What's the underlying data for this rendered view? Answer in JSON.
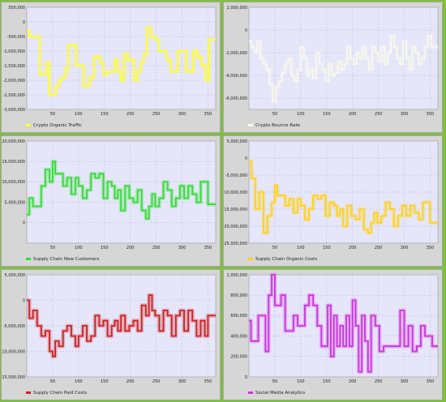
{
  "chart_data": [
    {
      "type": "line",
      "series": [
        {
          "name": "Crypto Organic Traffic",
          "color": "#ffff33"
        }
      ],
      "ylim": [
        -3000000,
        500000
      ],
      "yticks": [
        500000,
        0,
        -500000,
        -1000000,
        -1500000,
        -2000000,
        -2500000,
        -3000000
      ],
      "ytick_labels": [
        "500,000",
        "0",
        "-500,000",
        "-1,000,000",
        "-1,500,000",
        "-2,000,000",
        "-2,500,000",
        "-3,000,000"
      ],
      "xlim": [
        0,
        365
      ],
      "xticks": [
        50,
        100,
        150,
        200,
        250,
        300,
        350
      ],
      "xtick_labels": [
        "50",
        "100",
        "150",
        "200",
        "250",
        "300",
        "350"
      ],
      "x": [
        0,
        5,
        10,
        18,
        25,
        32,
        38,
        44,
        50,
        56,
        62,
        68,
        75,
        80,
        88,
        95,
        102,
        110,
        116,
        122,
        130,
        135,
        142,
        148,
        155,
        162,
        170,
        176,
        182,
        188,
        195,
        200,
        207,
        214,
        220,
        226,
        232,
        240,
        248,
        255,
        262,
        270,
        278,
        285,
        292,
        300,
        308,
        315,
        322,
        330,
        338,
        345,
        352,
        360
      ],
      "values": [
        -300000,
        -500000,
        -500000,
        -500000,
        -1800000,
        -1800000,
        -1400000,
        -2500000,
        -2500000,
        -2200000,
        -2000000,
        -1900000,
        -1600000,
        -800000,
        -800000,
        -1500000,
        -1500000,
        -2200000,
        -2200000,
        -1900000,
        -1200000,
        -1200000,
        -1400000,
        -1800000,
        -1700000,
        -1700000,
        -1300000,
        -1700000,
        -2000000,
        -1100000,
        -1300000,
        -1300000,
        -2000000,
        -1700000,
        -1400000,
        -1100000,
        -200000,
        -500000,
        -600000,
        -1000000,
        -1000000,
        -1300000,
        -1700000,
        -1700000,
        -1000000,
        -1000000,
        -1700000,
        -1700000,
        -1000000,
        -1200000,
        -1500000,
        -2000000,
        -600000,
        -600000
      ],
      "grid": true,
      "legend": "bottom-left"
    },
    {
      "type": "line",
      "series": [
        {
          "name": "Crypto Bounce Rate",
          "color": "#f8f8ec"
        }
      ],
      "ylim": [
        -7000000,
        2000000
      ],
      "yticks": [
        2000000,
        0,
        -2000000,
        -4000000,
        -6000000
      ],
      "ytick_labels": [
        "2,000,000",
        "0",
        "-2,000,000",
        "-4,000,000",
        "-6,000,000"
      ],
      "xlim": [
        0,
        365
      ],
      "xticks": [
        50,
        100,
        150,
        200,
        250,
        300,
        350
      ],
      "xtick_labels": [
        "50",
        "100",
        "150",
        "200",
        "250",
        "300",
        "350"
      ],
      "x": [
        0,
        5,
        10,
        16,
        22,
        28,
        34,
        40,
        46,
        52,
        58,
        64,
        70,
        76,
        82,
        88,
        94,
        100,
        106,
        112,
        118,
        124,
        130,
        136,
        142,
        148,
        154,
        160,
        166,
        172,
        178,
        184,
        190,
        196,
        202,
        208,
        214,
        220,
        226,
        232,
        238,
        244,
        250,
        256,
        262,
        268,
        274,
        280,
        286,
        292,
        298,
        304,
        310,
        316,
        322,
        328,
        334,
        340,
        346,
        352,
        360
      ],
      "values": [
        -1000000,
        -1500000,
        -2000000,
        -1000000,
        -2500000,
        -3000000,
        -3500000,
        -4800000,
        -6300000,
        -5000000,
        -4500000,
        -3800000,
        -3000000,
        -2500000,
        -4000000,
        -4500000,
        -3500000,
        -1500000,
        -2500000,
        -4000000,
        -3500000,
        -4200000,
        -2000000,
        -3000000,
        -3500000,
        -4500000,
        -3000000,
        -4000000,
        -3800000,
        -2800000,
        -3500000,
        -3000000,
        -1500000,
        -2500000,
        -3000000,
        -2000000,
        -2500000,
        -1500000,
        -2500000,
        -3500000,
        -1500000,
        -2000000,
        -2800000,
        -1500000,
        -3000000,
        -2000000,
        -500000,
        -1500000,
        -2500000,
        -3000000,
        -1000000,
        -2500000,
        -3500000,
        -1500000,
        -2000000,
        -3000000,
        -2500000,
        -1500000,
        -500000,
        -1500000,
        -1500000
      ],
      "grid": true,
      "legend": "bottom-left"
    },
    {
      "type": "line",
      "series": [
        {
          "name": "Supply Chain New Customers",
          "color": "#33dd33"
        }
      ],
      "ylim": [
        -5000000,
        20000000
      ],
      "yticks": [
        20000000,
        15000000,
        10000000,
        5000000,
        0
      ],
      "ytick_labels": [
        "20,000,000",
        "15,000,000",
        "10,000,000",
        "5,000,000",
        "0"
      ],
      "xlim": [
        0,
        365
      ],
      "xticks": [
        50,
        100,
        150,
        200,
        250,
        300,
        350
      ],
      "xtick_labels": [
        "50",
        "100",
        "150",
        "200",
        "250",
        "300",
        "350"
      ],
      "x": [
        0,
        5,
        12,
        20,
        28,
        36,
        44,
        50,
        55,
        62,
        70,
        78,
        86,
        94,
        100,
        108,
        116,
        124,
        132,
        140,
        148,
        156,
        164,
        170,
        176,
        182,
        190,
        198,
        206,
        214,
        222,
        230,
        236,
        242,
        248,
        256,
        264,
        272,
        280,
        288,
        296,
        304,
        312,
        320,
        328,
        336,
        344,
        350,
        360
      ],
      "values": [
        2000000,
        6000000,
        4000000,
        4000000,
        9000000,
        13000000,
        10000000,
        15000000,
        12000000,
        12000000,
        9000000,
        11000000,
        7000000,
        11000000,
        9000000,
        6000000,
        8000000,
        12000000,
        11000000,
        12000000,
        6000000,
        10000000,
        9000000,
        6000000,
        8000000,
        3000000,
        9000000,
        6000000,
        5000000,
        8000000,
        3000000,
        1000000,
        4000000,
        7000000,
        4000000,
        6000000,
        10000000,
        8000000,
        4000000,
        6000000,
        9000000,
        6000000,
        9000000,
        7000000,
        5000000,
        10000000,
        10000000,
        4500000,
        4500000
      ],
      "grid": true,
      "legend": "bottom-left"
    },
    {
      "type": "line",
      "series": [
        {
          "name": "Supply Chain Organic Costs",
          "color": "#ffd21a"
        }
      ],
      "ylim": [
        -25000000,
        5000000
      ],
      "yticks": [
        5000000,
        0,
        -5000000,
        -10000000,
        -15000000,
        -20000000,
        -25000000
      ],
      "ytick_labels": [
        "5,000,000",
        "0",
        "-5,000,000",
        "-10,000,000",
        "-15,000,000",
        "-20,000,000",
        "-25,000,000"
      ],
      "xlim": [
        0,
        365
      ],
      "xticks": [
        50,
        100,
        150,
        200,
        250,
        300,
        350
      ],
      "xtick_labels": [
        "50",
        "100",
        "150",
        "200",
        "250",
        "300",
        "350"
      ],
      "x": [
        0,
        5,
        12,
        20,
        28,
        36,
        44,
        50,
        55,
        62,
        70,
        78,
        86,
        94,
        100,
        108,
        116,
        124,
        132,
        140,
        148,
        156,
        164,
        170,
        176,
        182,
        190,
        198,
        206,
        214,
        222,
        230,
        236,
        242,
        248,
        256,
        264,
        272,
        280,
        288,
        296,
        304,
        312,
        320,
        328,
        336,
        344,
        350,
        360
      ],
      "values": [
        -1000000,
        -6000000,
        -15000000,
        -10000000,
        -22000000,
        -17000000,
        -13000000,
        -8000000,
        -11000000,
        -11000000,
        -14000000,
        -12000000,
        -16000000,
        -12000000,
        -14000000,
        -18000000,
        -15000000,
        -11000000,
        -12000000,
        -11000000,
        -17000000,
        -13000000,
        -14000000,
        -17000000,
        -15000000,
        -20000000,
        -14000000,
        -17000000,
        -18000000,
        -15000000,
        -21000000,
        -22000000,
        -19000000,
        -16000000,
        -19000000,
        -17000000,
        -13000000,
        -15000000,
        -20000000,
        -17000000,
        -14000000,
        -17000000,
        -14000000,
        -16000000,
        -18000000,
        -13000000,
        -13000000,
        -19000000,
        -19000000
      ],
      "grid": true,
      "legend": "bottom-left"
    },
    {
      "type": "line",
      "series": [
        {
          "name": "Supply Chain Paid Costs",
          "color": "#cc2222"
        }
      ],
      "ylim": [
        -15000000,
        5000000
      ],
      "yticks": [
        5000000,
        0,
        -5000000,
        -10000000,
        -15000000
      ],
      "ytick_labels": [
        "5,000,000",
        "0",
        "-5,000,000",
        "-10,000,000",
        "-15,000,000"
      ],
      "xlim": [
        0,
        365
      ],
      "xticks": [
        50,
        100,
        150,
        200,
        250,
        300,
        350
      ],
      "xtick_labels": [
        "50",
        "100",
        "150",
        "200",
        "250",
        "300",
        "350"
      ],
      "x": [
        0,
        5,
        12,
        20,
        28,
        36,
        44,
        50,
        55,
        62,
        70,
        78,
        86,
        94,
        100,
        108,
        116,
        124,
        132,
        140,
        148,
        156,
        164,
        170,
        176,
        182,
        190,
        198,
        206,
        214,
        222,
        230,
        236,
        242,
        248,
        256,
        264,
        272,
        280,
        288,
        296,
        304,
        312,
        320,
        328,
        336,
        344,
        350,
        360
      ],
      "values": [
        0,
        -3500000,
        -2000000,
        -5000000,
        -7000000,
        -6000000,
        -10000000,
        -11000000,
        -8000000,
        -9000000,
        -6000000,
        -5000000,
        -7000000,
        -9000000,
        -7000000,
        -5000000,
        -8000000,
        -7000000,
        -3000000,
        -5000000,
        -4000000,
        -7000000,
        -5000000,
        -4000000,
        -6000000,
        -3000000,
        -6000000,
        -5000000,
        -4000000,
        -6000000,
        -1000000,
        -3000000,
        1000000,
        -2000000,
        -3000000,
        -6000000,
        -2000000,
        -3000000,
        -7000000,
        -3000000,
        -2000000,
        -6000000,
        -2000000,
        -4000000,
        -7000000,
        -4000000,
        -7000000,
        -3000000,
        -3000000
      ],
      "grid": true,
      "legend": "bottom-left"
    },
    {
      "type": "line",
      "series": [
        {
          "name": "Social Media Analytics",
          "color": "#cc33dd"
        }
      ],
      "ylim": [
        0,
        1000000
      ],
      "yticks": [
        1000000,
        800000,
        600000,
        400000,
        200000,
        0
      ],
      "ytick_labels": [
        "1,000,000",
        "800,000",
        "600,000",
        "400,000",
        "200,000",
        "0"
      ],
      "xlim": [
        0,
        365
      ],
      "xticks": [
        50,
        100,
        150,
        200,
        250,
        300,
        350
      ],
      "xtick_labels": [
        "50",
        "100",
        "150",
        "200",
        "250",
        "300",
        "350"
      ],
      "x": [
        0,
        4,
        10,
        18,
        26,
        32,
        38,
        44,
        50,
        56,
        62,
        70,
        78,
        86,
        94,
        100,
        108,
        116,
        124,
        132,
        140,
        146,
        152,
        158,
        164,
        170,
        176,
        182,
        188,
        194,
        200,
        206,
        212,
        218,
        224,
        230,
        236,
        244,
        252,
        260,
        268,
        276,
        284,
        292,
        300,
        308,
        316,
        324,
        332,
        340,
        348,
        354,
        360
      ],
      "values": [
        550000,
        350000,
        350000,
        600000,
        600000,
        250000,
        800000,
        1000000,
        700000,
        700000,
        800000,
        450000,
        450000,
        600000,
        500000,
        500000,
        700000,
        800000,
        700000,
        500000,
        300000,
        300000,
        700000,
        200000,
        600000,
        300000,
        500000,
        300000,
        600000,
        300000,
        750000,
        500000,
        50000,
        600000,
        350000,
        50000,
        600000,
        500000,
        250000,
        300000,
        300000,
        300000,
        300000,
        650000,
        300000,
        500000,
        250000,
        300000,
        500000,
        400000,
        400000,
        300000,
        300000
      ],
      "grid": true,
      "legend": "bottom-left"
    }
  ]
}
